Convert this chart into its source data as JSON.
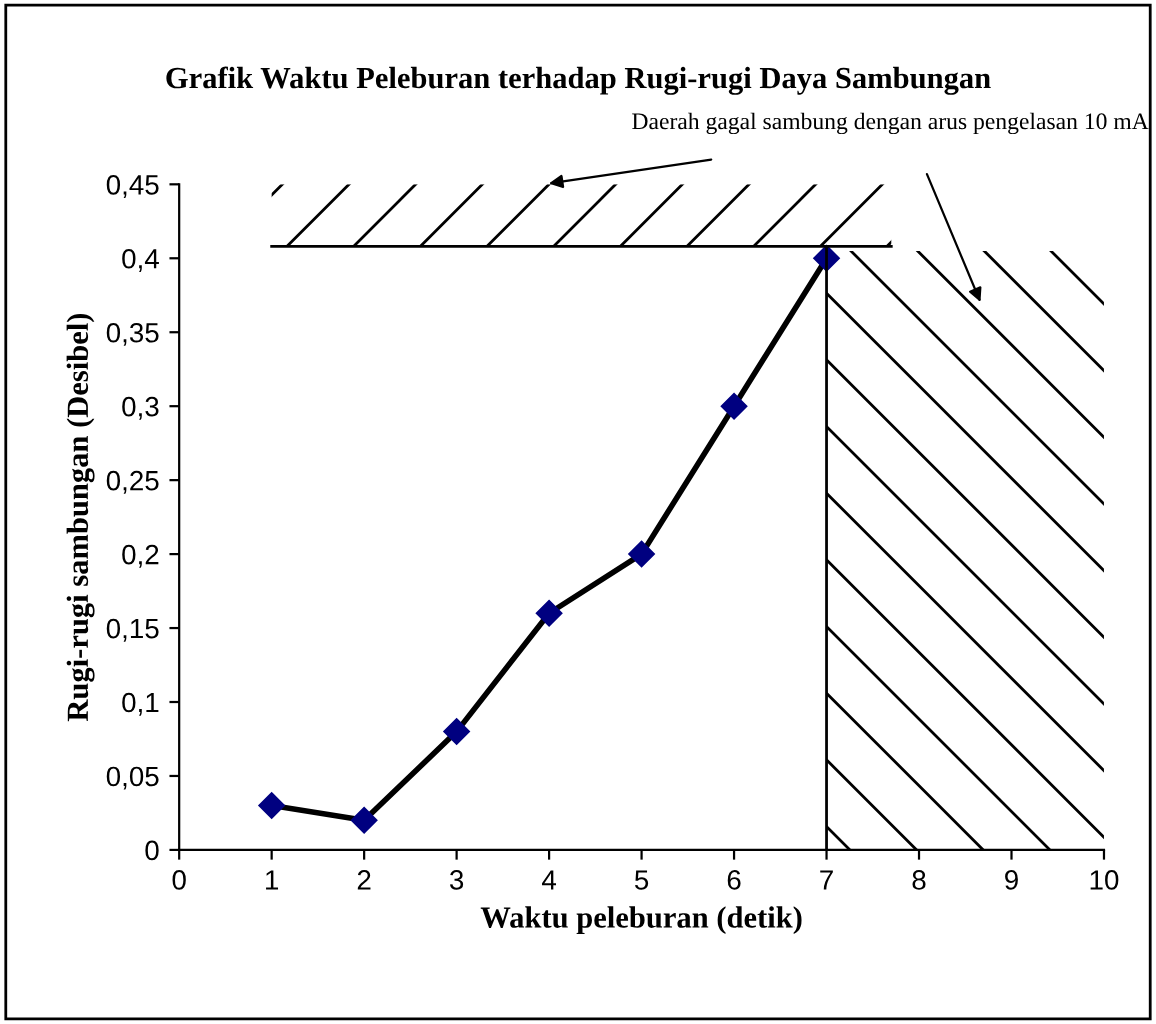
{
  "chart_data": {
    "type": "line",
    "title": "Grafik Waktu Peleburan terhadap Rugi-rugi Daya Sambungan",
    "xlabel": "Waktu peleburan (detik)",
    "ylabel": "Rugi-rugi sambungan (Desibel)",
    "x": [
      1,
      2,
      3,
      4,
      5,
      6,
      7
    ],
    "series": [
      {
        "color": "#000000",
        "values": [
          0.03,
          0.02,
          0.08,
          0.16,
          0.2,
          0.3,
          0.4
        ]
      }
    ],
    "marker": "diamond",
    "line_style": "solid",
    "grid": false,
    "legend": false,
    "xlim": [
      0,
      10
    ],
    "xticks": [
      0,
      1,
      2,
      3,
      4,
      5,
      6,
      7,
      8,
      9,
      10
    ],
    "ylim": [
      0,
      0.45
    ],
    "yticks": [
      0,
      {
        "value": 0.05,
        "label": "0,05"
      },
      {
        "value": 0.1,
        "label": "0,1"
      },
      {
        "value": 0.15,
        "label": "0,15"
      },
      {
        "value": 0.2,
        "label": "0,2"
      },
      {
        "value": 0.25,
        "label": "0,25"
      },
      {
        "value": 0.3,
        "label": "0,3"
      },
      {
        "value": 0.35,
        "label": "0,35"
      },
      {
        "value": 0.4,
        "label": "0,4"
      },
      {
        "value": 0.45,
        "label": "0,45"
      }
    ],
    "ref_lines": [
      {
        "axis": "y",
        "value": 0.408,
        "color": "#000000"
      },
      {
        "axis": "x",
        "value": 7,
        "color": "#000000"
      }
    ],
    "bands": [
      {
        "axis": "y",
        "from": 0.408,
        "to": 0.45
      },
      {
        "axis": "x",
        "from": 7,
        "to": 10
      }
    ],
    "annotations": [
      "Daerah gagal sambung dengan arus pengelasan 10 mA"
    ]
  }
}
